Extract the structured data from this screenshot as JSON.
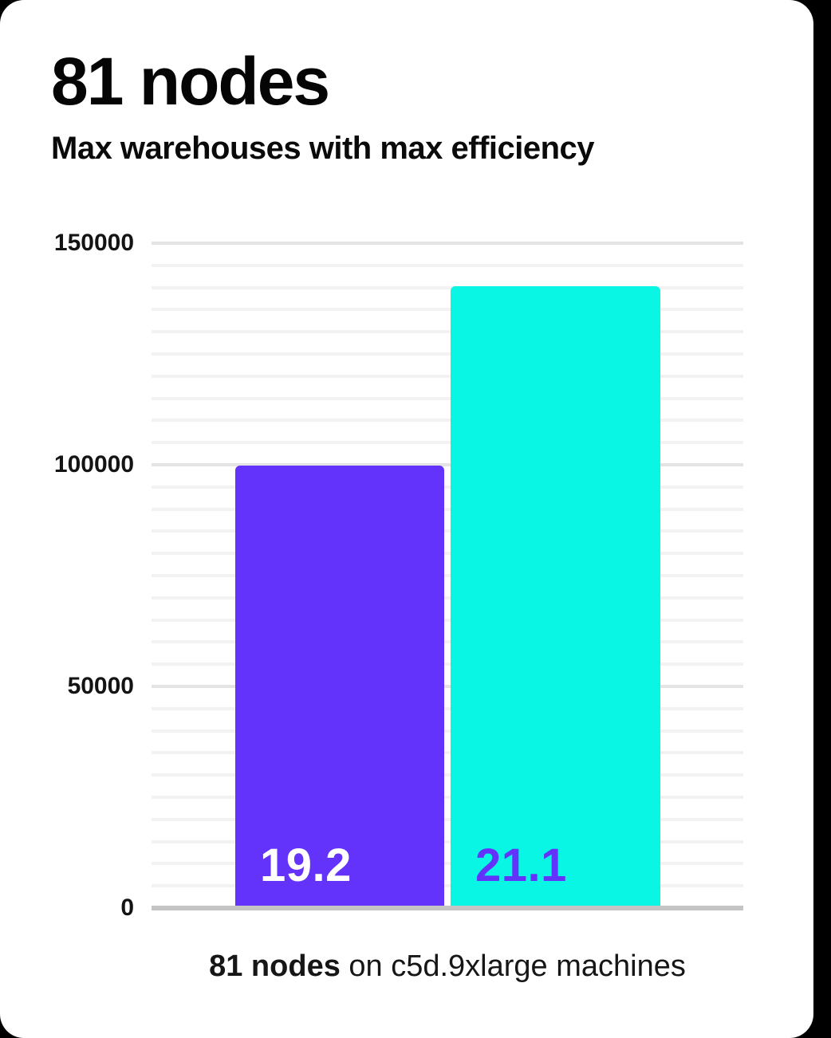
{
  "title": "81 nodes",
  "subtitle": "Max warehouses with max efficiency",
  "caption": {
    "bold": "81 nodes",
    "rest": " on c5d.9xlarge machines"
  },
  "chart_data": {
    "type": "bar",
    "title": "81 nodes",
    "subtitle": "Max warehouses with max efficiency",
    "bars": [
      {
        "label": "19.2",
        "value": 99500,
        "color": "#6433FB",
        "label_color": "#ffffff"
      },
      {
        "label": "21.1",
        "value": 140000,
        "color": "#09F6E5",
        "label_color": "#6433FB"
      }
    ],
    "ylim": [
      0,
      150000
    ],
    "yticks": [
      0,
      50000,
      100000,
      150000
    ],
    "minor_tick_step": 5000,
    "major_tick_step": 50000,
    "grid": "horizontal",
    "legend": "none",
    "xlabel": "81 nodes on c5d.9xlarge machines",
    "ylabel": ""
  },
  "colors": {
    "background": "#000000",
    "card": "#ffffff",
    "grid_minor": "#f2f2f2",
    "grid_major": "#e4e4e4",
    "axis_line": "#c4c4c4",
    "text": "#0a0a0a"
  }
}
